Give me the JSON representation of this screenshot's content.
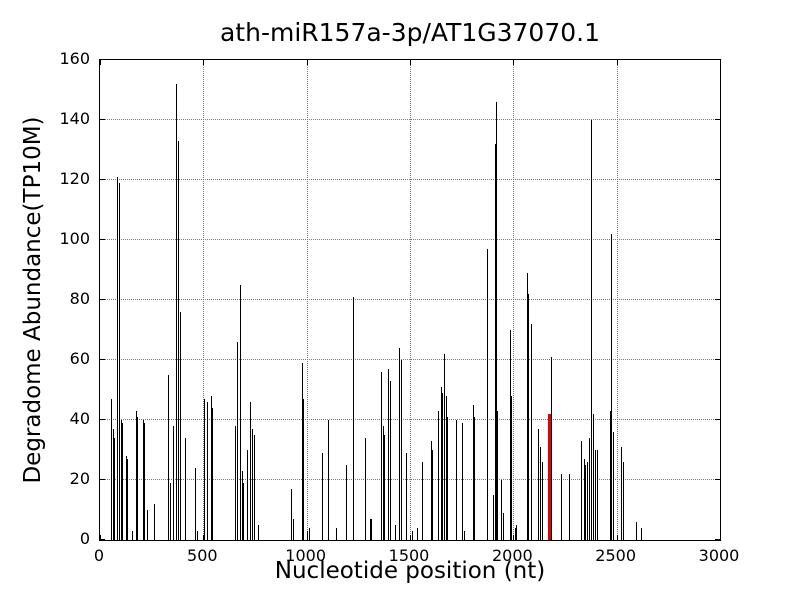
{
  "chart_data": {
    "type": "bar",
    "title": "ath-miR157a-3p/AT1G37070.1",
    "xlabel": "Nucleotide position (nt)",
    "ylabel": "Degradome Abundance(TP10M)",
    "xlim": [
      0,
      3000
    ],
    "ylim": [
      0,
      160
    ],
    "xticks": [
      0,
      500,
      1000,
      1500,
      2000,
      2500,
      3000
    ],
    "yticks": [
      0,
      20,
      40,
      60,
      80,
      100,
      120,
      140,
      160
    ],
    "grid": "dotted",
    "legend": null,
    "bar_color": "#000000",
    "highlight_color": "#e80000",
    "highlight_point": [
      2172,
      42
    ],
    "points": [
      [
        53,
        47
      ],
      [
        63,
        37
      ],
      [
        68,
        34
      ],
      [
        84,
        121
      ],
      [
        92,
        119
      ],
      [
        100,
        40
      ],
      [
        105,
        39
      ],
      [
        127,
        28
      ],
      [
        133,
        27
      ],
      [
        153,
        3
      ],
      [
        172,
        43
      ],
      [
        180,
        41
      ],
      [
        208,
        40
      ],
      [
        214,
        39
      ],
      [
        226,
        10
      ],
      [
        261,
        12
      ],
      [
        329,
        55
      ],
      [
        341,
        19
      ],
      [
        352,
        38
      ],
      [
        370,
        152
      ],
      [
        378,
        133
      ],
      [
        389,
        76
      ],
      [
        413,
        34
      ],
      [
        460,
        24
      ],
      [
        470,
        3
      ],
      [
        505,
        47
      ],
      [
        516,
        46
      ],
      [
        535,
        48
      ],
      [
        544,
        44
      ],
      [
        653,
        38
      ],
      [
        664,
        66
      ],
      [
        677,
        85
      ],
      [
        685,
        23
      ],
      [
        692,
        19
      ],
      [
        709,
        30
      ],
      [
        726,
        46
      ],
      [
        735,
        37
      ],
      [
        743,
        35
      ],
      [
        766,
        5
      ],
      [
        925,
        17
      ],
      [
        932,
        7
      ],
      [
        978,
        59
      ],
      [
        983,
        47
      ],
      [
        1000,
        3
      ],
      [
        1010,
        4
      ],
      [
        1076,
        29
      ],
      [
        1105,
        40
      ],
      [
        1140,
        4
      ],
      [
        1190,
        25
      ],
      [
        1224,
        81
      ],
      [
        1282,
        34
      ],
      [
        1305,
        7
      ],
      [
        1312,
        7
      ],
      [
        1360,
        56
      ],
      [
        1367,
        38
      ],
      [
        1373,
        35
      ],
      [
        1394,
        57
      ],
      [
        1404,
        53
      ],
      [
        1428,
        5
      ],
      [
        1448,
        64
      ],
      [
        1456,
        60
      ],
      [
        1480,
        29
      ],
      [
        1512,
        3
      ],
      [
        1535,
        4
      ],
      [
        1556,
        26
      ],
      [
        1602,
        33
      ],
      [
        1608,
        30
      ],
      [
        1637,
        43
      ],
      [
        1648,
        51
      ],
      [
        1654,
        49
      ],
      [
        1664,
        62
      ],
      [
        1672,
        48
      ],
      [
        1680,
        41
      ],
      [
        1722,
        40
      ],
      [
        1750,
        39
      ],
      [
        1762,
        3
      ],
      [
        1803,
        45
      ],
      [
        1809,
        41
      ],
      [
        1871,
        97
      ],
      [
        1900,
        15
      ],
      [
        1911,
        132
      ],
      [
        1918,
        146
      ],
      [
        1923,
        43
      ],
      [
        1942,
        20
      ],
      [
        1949,
        9
      ],
      [
        1985,
        70
      ],
      [
        1991,
        48
      ],
      [
        2006,
        4
      ],
      [
        2013,
        5
      ],
      [
        2066,
        89
      ],
      [
        2073,
        82
      ],
      [
        2087,
        72
      ],
      [
        2119,
        37
      ],
      [
        2131,
        31
      ],
      [
        2141,
        26
      ],
      [
        2183,
        61
      ],
      [
        2233,
        22
      ],
      [
        2270,
        22
      ],
      [
        2329,
        33
      ],
      [
        2340,
        27
      ],
      [
        2348,
        25
      ],
      [
        2358,
        26
      ],
      [
        2366,
        34
      ],
      [
        2377,
        140
      ],
      [
        2387,
        42
      ],
      [
        2395,
        30
      ],
      [
        2406,
        30
      ],
      [
        2466,
        43
      ],
      [
        2474,
        102
      ],
      [
        2482,
        36
      ],
      [
        2520,
        31
      ],
      [
        2531,
        26
      ],
      [
        2594,
        6
      ],
      [
        2617,
        4
      ]
    ]
  }
}
